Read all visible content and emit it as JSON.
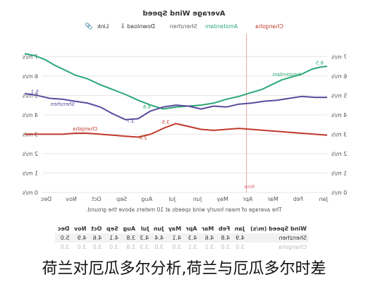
{
  "chart_data": {
    "type": "line",
    "title": "Average Wind Speed",
    "caption": "The average of mean hourly wind speeds at 10 meters above the ground.",
    "legend": [
      "Changsha",
      "Amsterdam",
      "Shenzhen",
      "Download",
      "Link"
    ],
    "legend_placement": "top",
    "y_ticks": [
      "0 m/s",
      "1 m/s",
      "2 m/s",
      "3 m/s",
      "4 m/s",
      "5 m/s",
      "6 m/s",
      "7 m/s"
    ],
    "ylim": [
      0,
      7.3
    ],
    "categories": [
      "Jan",
      "Feb",
      "Mar",
      "Apr",
      "May",
      "Jun",
      "Jul",
      "Aug",
      "Sep",
      "Oct",
      "Nov",
      "Dec"
    ],
    "now_label": "Now",
    "now_position_month": 3.2,
    "grid": true,
    "series": [
      {
        "name": "Amsterdam",
        "color": "#2aa876",
        "x": [
          0,
          0.3,
          0.6,
          1,
          1.4,
          1.8,
          2.2,
          2.6,
          3,
          3.5,
          4,
          4.5,
          5,
          5.5,
          6,
          6.5,
          7,
          7.2,
          7.5,
          8,
          8.5,
          9,
          9.5,
          10,
          10.4,
          10.8,
          11.2,
          11.6,
          12
        ],
        "y": [
          6.5,
          6.45,
          6.35,
          6.1,
          5.95,
          5.8,
          5.55,
          5.3,
          5.15,
          4.95,
          4.8,
          4.6,
          4.5,
          4.45,
          4.4,
          4.3,
          4.5,
          4.6,
          4.75,
          5.05,
          5.3,
          5.55,
          5.85,
          6.05,
          6.3,
          6.55,
          6.85,
          7.05,
          7.15
        ],
        "labels": [
          {
            "x": 0.3,
            "y": 6.6,
            "text": "6.5"
          },
          {
            "x": 7.15,
            "y": 4.32,
            "text": "4.6"
          },
          {
            "x": 1.6,
            "y": 6.0,
            "text": "Amsterdam"
          }
        ]
      },
      {
        "name": "Shenzhen",
        "color": "#5b4a9e",
        "x": [
          0,
          0.5,
          1,
          1.5,
          2,
          2.5,
          3,
          3.5,
          4,
          4.5,
          5,
          5.5,
          6,
          6.5,
          7,
          7.5,
          8,
          8.5,
          9,
          9.5,
          10,
          10.5,
          11,
          11.5,
          12
        ],
        "y": [
          4.9,
          4.9,
          4.95,
          4.85,
          4.75,
          4.7,
          4.6,
          4.55,
          4.4,
          4.45,
          4.3,
          4.45,
          4.5,
          4.4,
          4.2,
          3.8,
          3.75,
          4.05,
          4.4,
          4.6,
          4.7,
          4.8,
          4.85,
          5.0,
          5.1
        ],
        "labels": [
          {
            "x": 11.6,
            "y": 5.1,
            "text": "5.1"
          },
          {
            "x": 7.8,
            "y": 3.6,
            "text": "3.7"
          },
          {
            "x": 10.5,
            "y": 4.47,
            "text": "Shenzhen"
          }
        ]
      },
      {
        "name": "Changsha",
        "color": "#c0392b",
        "x": [
          0,
          0.5,
          1,
          1.5,
          2,
          2.5,
          3,
          3.5,
          4,
          4.5,
          5,
          5.5,
          6,
          6.5,
          7,
          7.5,
          8,
          8.5,
          9,
          9.5,
          10,
          10.5,
          11,
          11.5,
          12
        ],
        "y": [
          2.95,
          3.0,
          3.05,
          3.1,
          3.15,
          3.2,
          3.25,
          3.3,
          3.25,
          3.2,
          3.25,
          3.4,
          3.55,
          3.3,
          3.0,
          2.85,
          2.9,
          2.95,
          3.0,
          3.05,
          3.05,
          3.0,
          3.0,
          3.0,
          3.0
        ],
        "labels": [
          {
            "x": 6.4,
            "y": 3.55,
            "text": "3.5"
          },
          {
            "x": 7.3,
            "y": 2.75,
            "text": "2.8"
          },
          {
            "x": 9.6,
            "y": 3.2,
            "text": "Changsha"
          }
        ]
      }
    ]
  },
  "table": {
    "header": [
      "Wind Speed (m/s)",
      "Jan",
      "Feb",
      "Mar",
      "Apr",
      "May",
      "Jun",
      "Jul",
      "Aug",
      "Sep",
      "Oct",
      "Nov",
      "Dec"
    ],
    "rows": [
      [
        "Shenzhen",
        "4.9",
        "4.8",
        "4.6",
        "4.3",
        "4.1",
        "4.4",
        "4.3",
        "3.8",
        "4.1",
        "4.6",
        "4.9",
        "5.0"
      ],
      [
        "Changsha",
        "3.0",
        "3.0",
        "3.1",
        "3.1",
        "3.0",
        "3.0",
        "3.3",
        "2.8",
        "3.0",
        "3.0",
        "3.0",
        "3.0"
      ]
    ]
  },
  "overlay_text": "荷兰对厄瓜多尔分析,荷兰与厄瓜多尔时差"
}
